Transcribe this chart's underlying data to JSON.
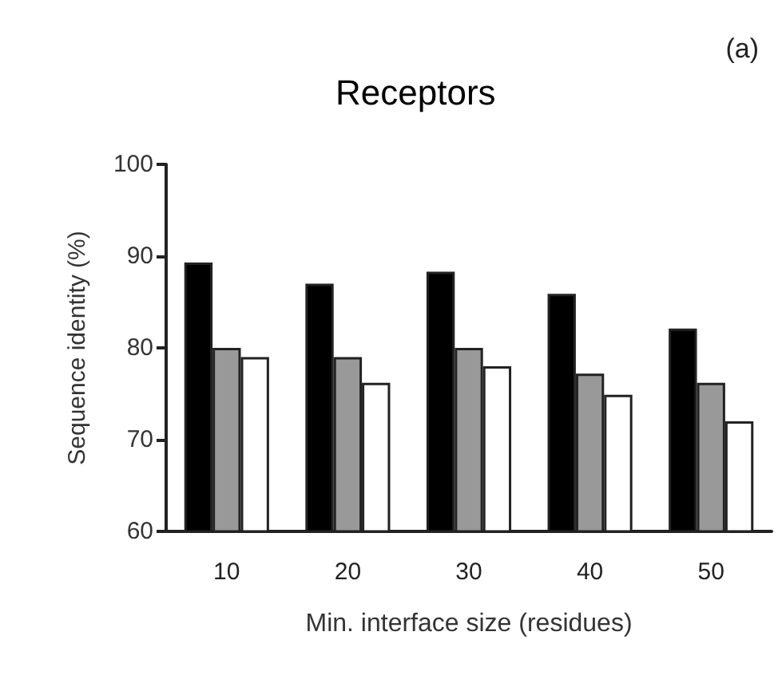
{
  "chart_data": {
    "type": "bar",
    "title": "Receptors",
    "annotations": [
      "(a)"
    ],
    "xlabel": "Min. interface size (residues)",
    "ylabel": "Sequence identity (%)",
    "categories": [
      "10",
      "20",
      "30",
      "40",
      "50"
    ],
    "series": [
      {
        "color": "#000000",
        "values": [
          89.3,
          87.0,
          88.3,
          85.9,
          82.1
        ]
      },
      {
        "color": "#999999",
        "values": [
          80.0,
          79.0,
          80.0,
          77.2,
          76.2
        ]
      },
      {
        "color": "#ffffff",
        "values": [
          79.0,
          76.2,
          78.0,
          74.9,
          72.0
        ]
      }
    ],
    "ylim": [
      60,
      100
    ],
    "yticks": [
      60,
      70,
      80,
      90,
      100
    ],
    "grid": false
  }
}
